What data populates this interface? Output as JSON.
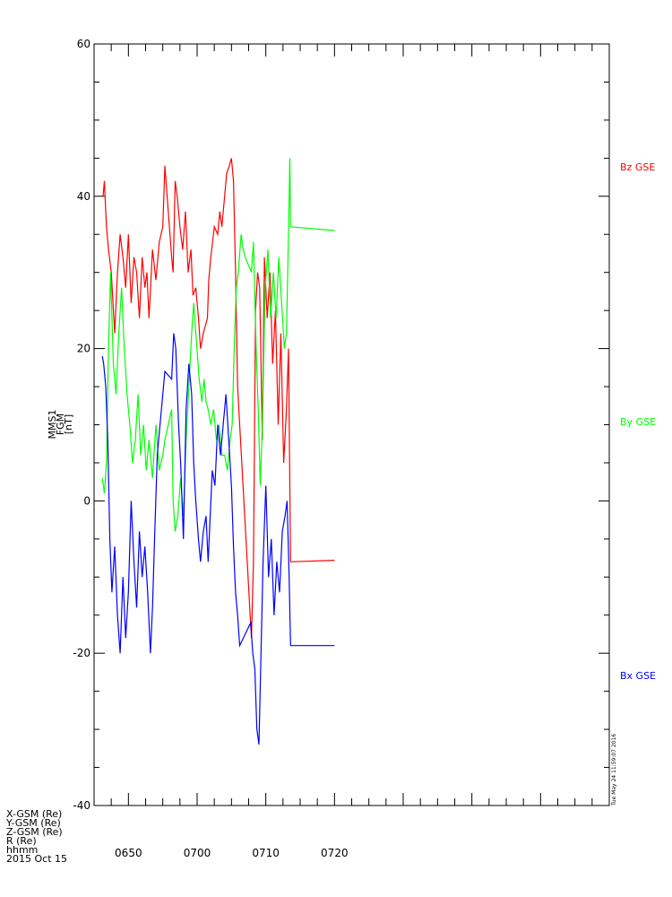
{
  "chart_data": {
    "type": "line",
    "title": "",
    "ylabel_lines": [
      "MMS1",
      "FGM",
      "[nT]"
    ],
    "ylim": [
      -40,
      60
    ],
    "yticks": [
      -40,
      -20,
      0,
      20,
      40,
      60
    ],
    "x_unit": "hhmm",
    "xlim_minutes": [
      645,
      720
    ],
    "xticks": [
      {
        "label": "0650",
        "minute": 650
      },
      {
        "label": "0700",
        "minute": 660
      },
      {
        "label": "0710",
        "minute": 670
      },
      {
        "label": "0720",
        "minute": 680
      }
    ],
    "series": [
      {
        "name": "Bz GSE",
        "color": "#ff0000",
        "points": [
          [
            646.3,
            40
          ],
          [
            646.5,
            42
          ],
          [
            646.8,
            36
          ],
          [
            647.1,
            33
          ],
          [
            647.5,
            30
          ],
          [
            648.0,
            22
          ],
          [
            648.4,
            30
          ],
          [
            648.8,
            35
          ],
          [
            649.2,
            32
          ],
          [
            649.6,
            28
          ],
          [
            650.0,
            35
          ],
          [
            650.4,
            26
          ],
          [
            650.8,
            32
          ],
          [
            651.2,
            30
          ],
          [
            651.6,
            24
          ],
          [
            652.0,
            32
          ],
          [
            652.4,
            28
          ],
          [
            652.7,
            30
          ],
          [
            653.0,
            24
          ],
          [
            653.5,
            33
          ],
          [
            654.0,
            29
          ],
          [
            654.5,
            34
          ],
          [
            655.0,
            36
          ],
          [
            655.3,
            44
          ],
          [
            656.3,
            32
          ],
          [
            656.5,
            30
          ],
          [
            656.8,
            42
          ],
          [
            657.1,
            40
          ],
          [
            657.5,
            36
          ],
          [
            657.9,
            33
          ],
          [
            658.3,
            38
          ],
          [
            658.7,
            30
          ],
          [
            659.1,
            33
          ],
          [
            659.4,
            27
          ],
          [
            659.8,
            28
          ],
          [
            660.2,
            24
          ],
          [
            660.5,
            20
          ],
          [
            660.9,
            22
          ],
          [
            661.2,
            23
          ],
          [
            661.5,
            24
          ],
          [
            661.7,
            29
          ],
          [
            662.0,
            32
          ],
          [
            662.5,
            36
          ],
          [
            663.0,
            35
          ],
          [
            663.3,
            38
          ],
          [
            663.6,
            36
          ],
          [
            664.0,
            40
          ],
          [
            664.3,
            43
          ],
          [
            664.7,
            44
          ],
          [
            665.0,
            45
          ],
          [
            665.3,
            42
          ],
          [
            665.6,
            30
          ],
          [
            665.9,
            15
          ],
          [
            666.2,
            10
          ],
          [
            667.9,
            -18
          ],
          [
            668.2,
            -8
          ],
          [
            668.5,
            25
          ],
          [
            668.8,
            30
          ],
          [
            669.1,
            28
          ],
          [
            669.5,
            8
          ],
          [
            669.8,
            32
          ],
          [
            670.2,
            24
          ],
          [
            670.6,
            30
          ],
          [
            671.0,
            18
          ],
          [
            671.4,
            25
          ],
          [
            671.8,
            10
          ],
          [
            672.2,
            22
          ],
          [
            672.6,
            5
          ],
          [
            673.0,
            12
          ],
          [
            673.3,
            20
          ],
          [
            673.6,
            -8
          ],
          [
            680,
            -7.8
          ]
        ]
      },
      {
        "name": "By GSE",
        "color": "#00ff00",
        "points": [
          [
            646.2,
            3
          ],
          [
            646.5,
            1
          ],
          [
            646.8,
            5
          ],
          [
            647.1,
            20
          ],
          [
            647.4,
            30
          ],
          [
            647.8,
            18
          ],
          [
            648.2,
            14
          ],
          [
            648.6,
            22
          ],
          [
            649.0,
            28
          ],
          [
            649.4,
            20
          ],
          [
            649.8,
            14
          ],
          [
            650.2,
            10
          ],
          [
            650.6,
            5
          ],
          [
            651.0,
            8
          ],
          [
            651.4,
            14
          ],
          [
            651.8,
            6
          ],
          [
            652.2,
            10
          ],
          [
            652.6,
            4
          ],
          [
            653.0,
            8
          ],
          [
            653.5,
            3
          ],
          [
            654.0,
            10
          ],
          [
            654.5,
            4
          ],
          [
            655.0,
            6
          ],
          [
            655.3,
            8
          ],
          [
            656.3,
            12
          ],
          [
            656.5,
            0
          ],
          [
            656.8,
            -4
          ],
          [
            657.2,
            -2
          ],
          [
            657.6,
            3
          ],
          [
            658.0,
            -2
          ],
          [
            658.4,
            8
          ],
          [
            658.8,
            15
          ],
          [
            659.2,
            22
          ],
          [
            659.5,
            26
          ],
          [
            659.9,
            21
          ],
          [
            660.3,
            16
          ],
          [
            660.7,
            13
          ],
          [
            661.0,
            16
          ],
          [
            661.3,
            13
          ],
          [
            661.6,
            12
          ],
          [
            662.0,
            10
          ],
          [
            662.4,
            12
          ],
          [
            662.8,
            8
          ],
          [
            663.2,
            10
          ],
          [
            663.6,
            6
          ],
          [
            664.0,
            6
          ],
          [
            664.4,
            4
          ],
          [
            664.8,
            8
          ],
          [
            665.1,
            10
          ],
          [
            665.4,
            20
          ],
          [
            665.7,
            28
          ],
          [
            666.0,
            30
          ],
          [
            666.4,
            35
          ],
          [
            666.7,
            33
          ],
          [
            667.0,
            32
          ],
          [
            667.9,
            30
          ],
          [
            668.2,
            34
          ],
          [
            668.6,
            20
          ],
          [
            668.9,
            12
          ],
          [
            669.2,
            2
          ],
          [
            669.5,
            10
          ],
          [
            669.9,
            28
          ],
          [
            670.3,
            33
          ],
          [
            670.7,
            24
          ],
          [
            671.1,
            30
          ],
          [
            671.5,
            24
          ],
          [
            671.9,
            32
          ],
          [
            672.3,
            26
          ],
          [
            672.7,
            20
          ],
          [
            673.0,
            22
          ],
          [
            673.3,
            35
          ],
          [
            673.5,
            45
          ],
          [
            673.6,
            36
          ],
          [
            680,
            35.5
          ]
        ]
      },
      {
        "name": "Bx GSE",
        "color": "#0000ff",
        "points": [
          [
            646.2,
            19
          ],
          [
            646.4,
            18
          ],
          [
            646.7,
            15
          ],
          [
            647.0,
            8
          ],
          [
            647.3,
            -5
          ],
          [
            647.6,
            -12
          ],
          [
            648.0,
            -6
          ],
          [
            648.4,
            -15
          ],
          [
            648.8,
            -20
          ],
          [
            649.2,
            -10
          ],
          [
            649.6,
            -18
          ],
          [
            650.0,
            -12
          ],
          [
            650.4,
            0
          ],
          [
            650.8,
            -8
          ],
          [
            651.2,
            -14
          ],
          [
            651.6,
            -4
          ],
          [
            652.0,
            -10
          ],
          [
            652.4,
            -6
          ],
          [
            652.8,
            -12
          ],
          [
            653.2,
            -20
          ],
          [
            653.5,
            -14
          ],
          [
            653.8,
            -5
          ],
          [
            654.2,
            6
          ],
          [
            654.6,
            10
          ],
          [
            655.0,
            14
          ],
          [
            655.3,
            17
          ],
          [
            656.3,
            16
          ],
          [
            656.6,
            22
          ],
          [
            656.9,
            20
          ],
          [
            657.3,
            10
          ],
          [
            657.6,
            5
          ],
          [
            658.0,
            -5
          ],
          [
            658.4,
            12
          ],
          [
            658.8,
            18
          ],
          [
            659.2,
            14
          ],
          [
            659.5,
            5
          ],
          [
            659.8,
            0
          ],
          [
            660.2,
            -5
          ],
          [
            660.5,
            -8
          ],
          [
            660.9,
            -4
          ],
          [
            661.3,
            -2
          ],
          [
            661.6,
            -8
          ],
          [
            661.9,
            -2
          ],
          [
            662.2,
            4
          ],
          [
            662.6,
            2
          ],
          [
            663.0,
            10
          ],
          [
            663.4,
            6
          ],
          [
            663.8,
            10
          ],
          [
            664.2,
            14
          ],
          [
            664.6,
            8
          ],
          [
            665.0,
            2
          ],
          [
            665.3,
            -6
          ],
          [
            665.6,
            -12
          ],
          [
            665.9,
            -15
          ],
          [
            666.2,
            -19
          ],
          [
            667.8,
            -16
          ],
          [
            668.1,
            -20
          ],
          [
            668.4,
            -22
          ],
          [
            668.7,
            -30
          ],
          [
            669.0,
            -32
          ],
          [
            669.3,
            -20
          ],
          [
            669.6,
            -8
          ],
          [
            670.0,
            2
          ],
          [
            670.4,
            -10
          ],
          [
            670.8,
            -5
          ],
          [
            671.2,
            -15
          ],
          [
            671.6,
            -8
          ],
          [
            672.0,
            -12
          ],
          [
            672.4,
            -4
          ],
          [
            672.8,
            -2
          ],
          [
            673.1,
            0
          ],
          [
            673.4,
            -10
          ],
          [
            673.6,
            -19
          ],
          [
            680,
            -19
          ]
        ]
      }
    ],
    "legend_placement": "right, beside each trace end",
    "grid": false
  },
  "footer": {
    "lines": [
      "X-GSM (Re)",
      "Y-GSM (Re)",
      "Z-GSM (Re)",
      "R (Re)",
      "hhmm",
      "2015 Oct 15"
    ]
  },
  "timestamp": "Tue May 24 11:59:07 2016"
}
